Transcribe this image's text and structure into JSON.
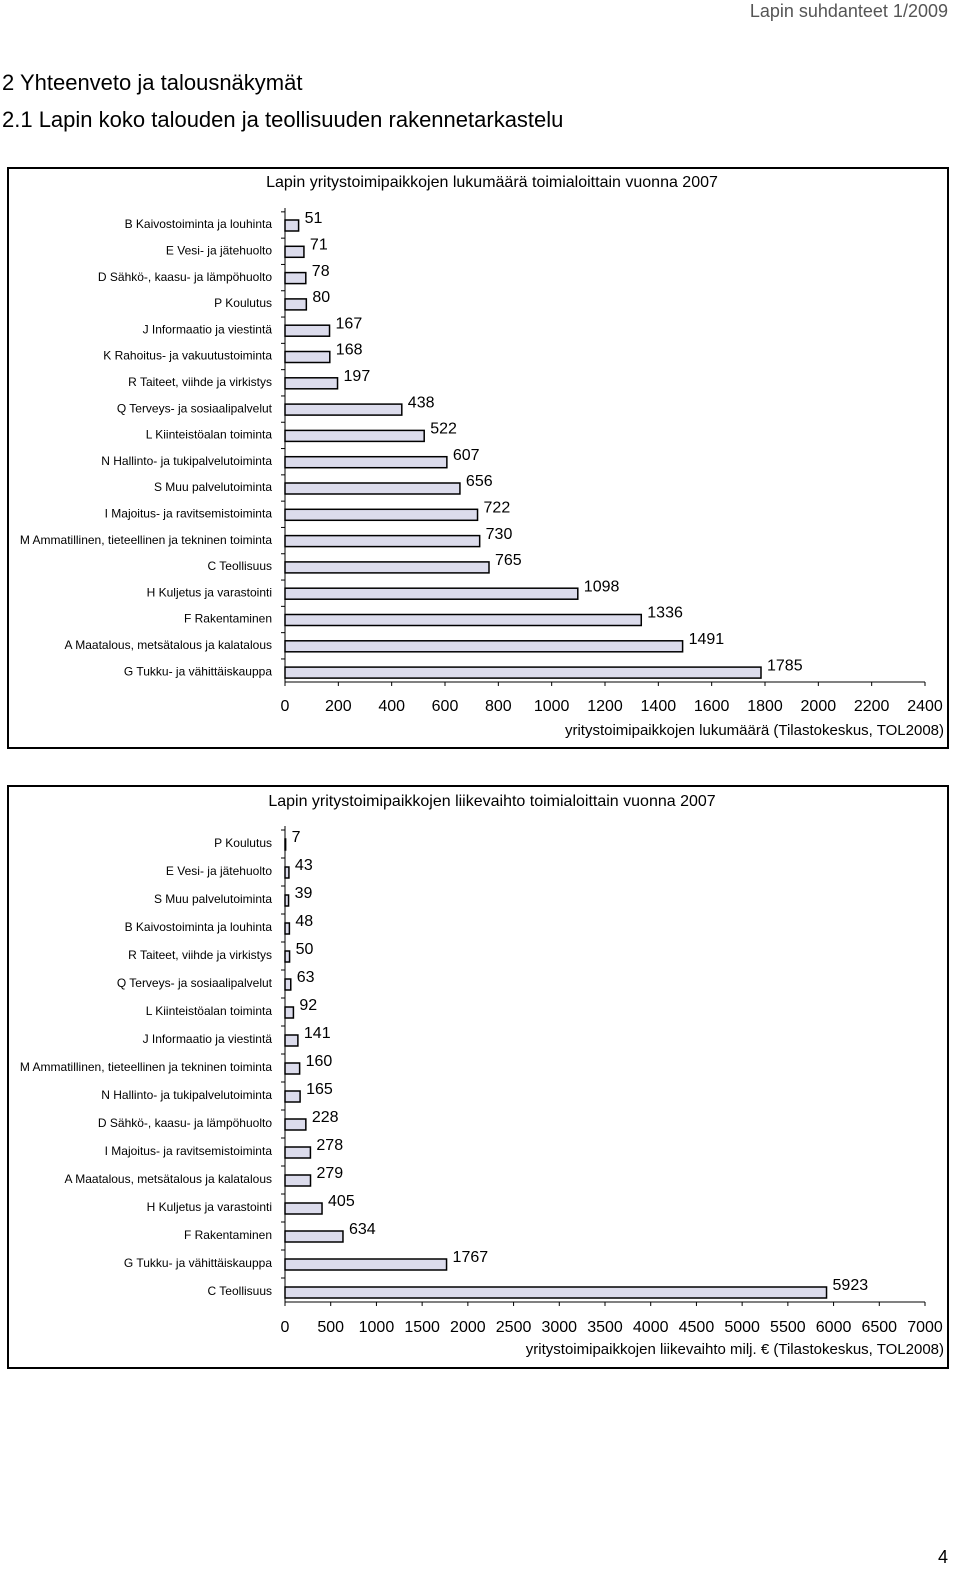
{
  "header": "Lapin suhdanteet 1/2009",
  "headings": [
    "2 Yhteenveto ja talousnäkymät",
    "2.1 Lapin koko talouden ja teollisuuden rakennetarkastelu"
  ],
  "page_number": "4",
  "chart_data": [
    {
      "type": "barh",
      "title": "Lapin yritystoimipaikkojen lukumäärä toimialoittain vuonna 2007",
      "x_label": "yritystoimipaikkojen lukumäärä (Tilastokeskus, TOL2008)",
      "color": "#dcdcec",
      "categories": [
        "B Kaivostoiminta ja louhinta",
        "E Vesi- ja jätehuolto",
        "D Sähkö-, kaasu- ja lämpöhuolto",
        "P Koulutus",
        "J Informaatio ja viestintä",
        "K Rahoitus- ja vakuutustoiminta",
        "R Taiteet, viihde ja virkistys",
        "Q Terveys- ja sosiaalipalvelut",
        "L Kiinteistöalan toiminta",
        "N Hallinto- ja tukipalvelutoiminta",
        "S Muu palvelutoiminta",
        "I Majoitus- ja ravitsemistoiminta",
        "M Ammatillinen, tieteellinen ja tekninen toiminta",
        "C Teollisuus",
        "H Kuljetus ja varastointi",
        "F Rakentaminen",
        "A Maatalous, metsätalous ja kalatalous",
        "G Tukku- ja vähittäiskauppa"
      ],
      "values": [
        51,
        71,
        78,
        80,
        167,
        168,
        197,
        438,
        522,
        607,
        656,
        722,
        730,
        765,
        1098,
        1336,
        1491,
        1785
      ],
      "xlim": [
        0,
        2400
      ],
      "xticks": [
        0,
        200,
        400,
        600,
        800,
        1000,
        1200,
        1400,
        1600,
        1800,
        2000,
        2200,
        2400
      ]
    },
    {
      "type": "barh",
      "title": "Lapin yritystoimipaikkojen liikevaihto toimialoittain vuonna 2007",
      "x_label": "yritystoimipaikkojen liikevaihto milj. € (Tilastokeskus, TOL2008)",
      "color": "#dcdcec",
      "categories": [
        "P Koulutus",
        "E Vesi- ja jätehuolto",
        "S Muu palvelutoiminta",
        "B Kaivostoiminta ja louhinta",
        "R Taiteet, viihde ja virkistys",
        "Q Terveys- ja sosiaalipalvelut",
        "L Kiinteistöalan toiminta",
        "J Informaatio ja viestintä",
        "M Ammatillinen, tieteellinen ja tekninen toiminta",
        "N Hallinto- ja tukipalvelutoiminta",
        "D Sähkö-, kaasu- ja lämpöhuolto",
        "I Majoitus- ja ravitsemistoiminta",
        "A Maatalous, metsätalous ja kalatalous",
        "H Kuljetus ja varastointi",
        "F Rakentaminen",
        "G Tukku- ja vähittäiskauppa",
        "C Teollisuus"
      ],
      "values": [
        7,
        43,
        39,
        48,
        50,
        63,
        92,
        141,
        160,
        165,
        228,
        278,
        279,
        405,
        634,
        1767,
        5923
      ],
      "xlim": [
        0,
        7000
      ],
      "xticks": [
        0,
        500,
        1000,
        1500,
        2000,
        2500,
        3000,
        3500,
        4000,
        4500,
        5000,
        5500,
        6000,
        6500,
        7000
      ]
    }
  ]
}
